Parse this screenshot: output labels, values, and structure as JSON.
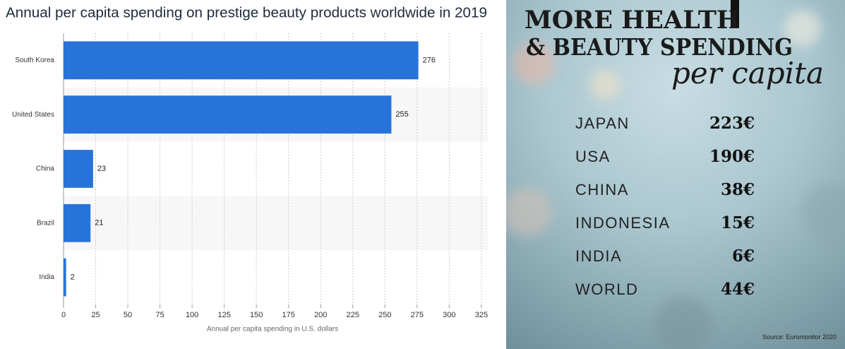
{
  "chart_data": {
    "type": "hbar",
    "title": "Annual per capita spending on prestige beauty products worldwide in 2019",
    "categories": [
      "South Korea",
      "United States",
      "China",
      "Brazil",
      "India"
    ],
    "values": [
      276,
      255,
      23,
      21,
      2
    ],
    "color": "#2873d9",
    "xlim": [
      0,
      330
    ],
    "xticks": [
      0,
      25,
      50,
      75,
      100,
      125,
      150,
      175,
      200,
      225,
      250,
      275,
      300,
      325
    ],
    "x_label": "Annual per capita spending in U.S. dollars",
    "grid": true
  },
  "infographic": {
    "title_line1": "MORE HEALTH",
    "title_line2": "& BEAUTY SPENDING",
    "subtitle": "per capita",
    "rows": [
      {
        "label": "JAPAN",
        "value": "223€"
      },
      {
        "label": "USA",
        "value": "190€"
      },
      {
        "label": "CHINA",
        "value": "38€"
      },
      {
        "label": "INDONESIA",
        "value": "15€"
      },
      {
        "label": "INDIA",
        "value": "6€"
      },
      {
        "label": "WORLD",
        "value": "44€"
      }
    ],
    "source": "Source: Euromonitor 2020"
  }
}
